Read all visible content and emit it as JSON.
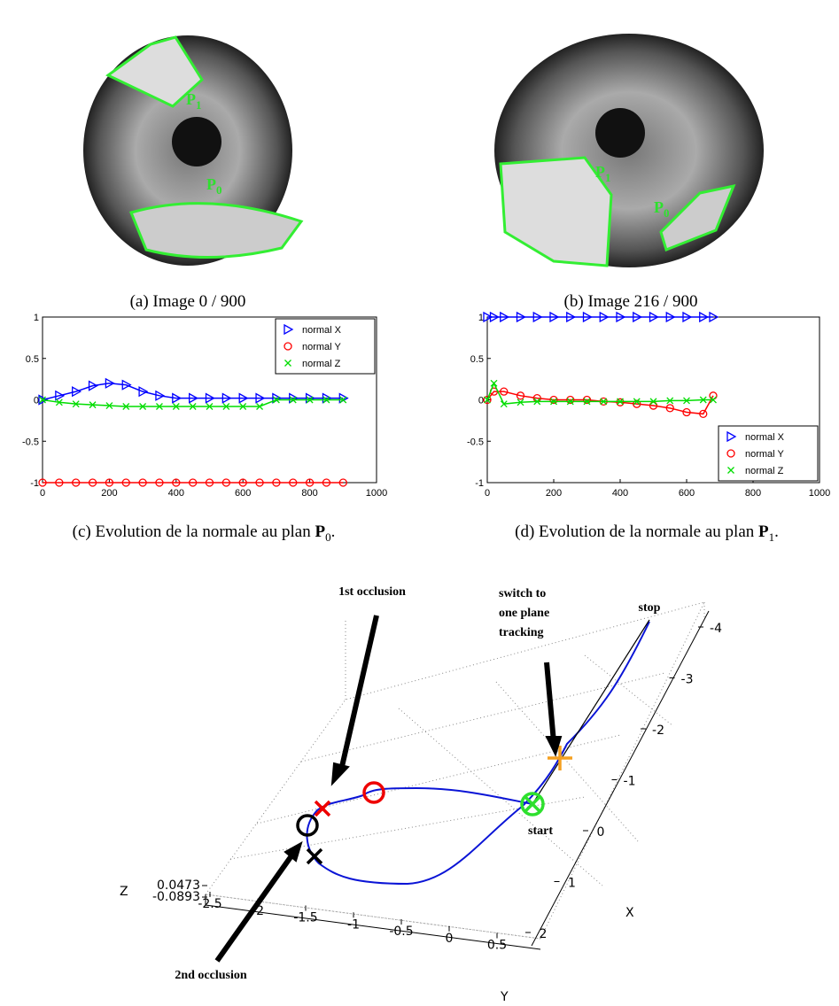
{
  "images": [
    {
      "caption": "(a) Image 0 / 900",
      "labels": [
        {
          "text": "P",
          "sub": "1"
        },
        {
          "text": "P",
          "sub": "0"
        }
      ]
    },
    {
      "caption": "(b) Image 216 / 900",
      "labels": [
        {
          "text": "P",
          "sub": "1"
        },
        {
          "text": "P",
          "sub": "0"
        }
      ]
    }
  ],
  "chart_data": [
    {
      "type": "line",
      "caption": {
        "prefix": "(c) Evolution de la normale au plan ",
        "symbol": "P",
        "sub": "0",
        "suffix": "."
      },
      "x": [
        0,
        50,
        100,
        150,
        200,
        250,
        300,
        350,
        400,
        450,
        500,
        550,
        600,
        650,
        700,
        750,
        800,
        850,
        900
      ],
      "series": [
        {
          "name": "normal X",
          "color": "#0000ff",
          "marker": "triangle",
          "values": [
            0,
            0.05,
            0.1,
            0.17,
            0.2,
            0.18,
            0.1,
            0.05,
            0.02,
            0.02,
            0.02,
            0.02,
            0.02,
            0.02,
            0.02,
            0.02,
            0.02,
            0.02,
            0.02
          ]
        },
        {
          "name": "normal Y",
          "color": "#ff0000",
          "marker": "circle",
          "values": [
            -1,
            -1,
            -1,
            -1,
            -1,
            -1,
            -1,
            -1,
            -1,
            -1,
            -1,
            -1,
            -1,
            -1,
            -1,
            -1,
            -1,
            -1,
            -1
          ]
        },
        {
          "name": "normal Z",
          "color": "#00dd00",
          "marker": "x",
          "values": [
            0,
            -0.03,
            -0.05,
            -0.06,
            -0.07,
            -0.08,
            -0.08,
            -0.08,
            -0.08,
            -0.08,
            -0.08,
            -0.08,
            -0.08,
            -0.08,
            0,
            0,
            0,
            0,
            0
          ]
        }
      ],
      "xlim": [
        0,
        1000
      ],
      "ylim": [
        -1,
        1
      ],
      "xticks": [
        0,
        200,
        400,
        600,
        800,
        1000
      ],
      "yticks": [
        -1,
        -0.5,
        0,
        0.5,
        1
      ],
      "legend": "upper right"
    },
    {
      "type": "line",
      "caption": {
        "prefix": "(d) Evolution de la normale au plan ",
        "symbol": "P",
        "sub": "1",
        "suffix": "."
      },
      "x": [
        0,
        20,
        50,
        100,
        150,
        200,
        250,
        300,
        350,
        400,
        450,
        500,
        550,
        600,
        650,
        680
      ],
      "series": [
        {
          "name": "normal X",
          "color": "#0000ff",
          "marker": "triangle",
          "values": [
            1,
            1,
            1,
            1,
            1,
            1,
            1,
            1,
            1,
            1,
            1,
            1,
            1,
            1,
            1,
            1
          ]
        },
        {
          "name": "normal Y",
          "color": "#ff0000",
          "marker": "circle",
          "values": [
            0,
            0.1,
            0.1,
            0.05,
            0.02,
            0,
            0,
            0,
            -0.02,
            -0.03,
            -0.05,
            -0.07,
            -0.1,
            -0.15,
            -0.17,
            0.05
          ]
        },
        {
          "name": "normal Z",
          "color": "#00dd00",
          "marker": "x",
          "values": [
            0,
            0.2,
            -0.05,
            -0.03,
            -0.02,
            -0.02,
            -0.02,
            -0.02,
            -0.02,
            -0.02,
            -0.02,
            -0.02,
            -0.01,
            -0.01,
            0,
            0
          ]
        }
      ],
      "xlim": [
        0,
        1000
      ],
      "ylim": [
        -1,
        1
      ],
      "xticks": [
        0,
        200,
        400,
        600,
        800,
        1000
      ],
      "yticks": [
        -1,
        -0.5,
        0,
        0.5,
        1
      ],
      "legend": "lower right"
    }
  ],
  "trajectory_plot": {
    "xlabel": "X",
    "ylabel": "Y",
    "zlabel": "Z",
    "xticks": [
      -4,
      -3,
      -2,
      -1,
      0,
      1,
      2
    ],
    "yticks": [
      -2.5,
      -2,
      -1.5,
      -1,
      -0.5,
      0,
      0.5
    ],
    "zticks": [
      0.0473,
      -0.0893
    ],
    "annotations": {
      "first_occlusion": "1st occlusion",
      "second_occlusion": "2nd occlusion",
      "switch": [
        "switch to",
        "one plane",
        "tracking"
      ],
      "start": "start",
      "stop": "stop"
    }
  }
}
